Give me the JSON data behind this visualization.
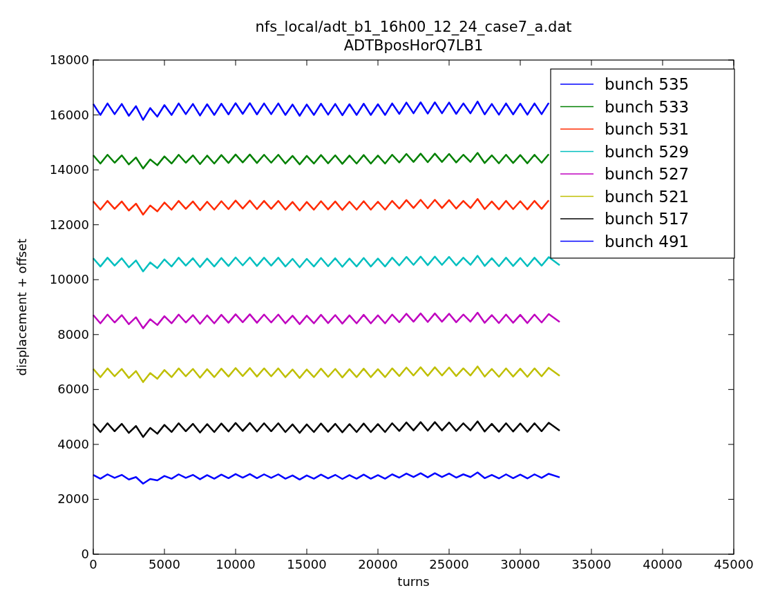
{
  "chart_data": {
    "type": "line",
    "title": "nfs_local/adt_b1_16h00_12_24_case7_a.dat",
    "subtitle": "ADTBposHorQ7LB1",
    "xlabel": "turns",
    "ylabel": "displacement + offset",
    "x": [
      0,
      500,
      1000,
      1500,
      2000,
      2500,
      3000,
      3500,
      4000,
      4500,
      5000,
      5500,
      6000,
      6500,
      7000,
      7500,
      8000,
      8500,
      9000,
      9500,
      10000,
      10500,
      11000,
      11500,
      12000,
      12500,
      13000,
      13500,
      14000,
      14500,
      15000,
      15500,
      16000,
      16500,
      17000,
      17500,
      18000,
      18500,
      19000,
      19500,
      20000,
      20500,
      21000,
      21500,
      22000,
      22500,
      23000,
      23500,
      24000,
      24500,
      25000,
      25500,
      26000,
      26500,
      27000,
      27500,
      28000,
      28500,
      29000,
      29500,
      30000,
      30500,
      31000,
      31500,
      32000,
      32768
    ],
    "xlim": [
      0,
      45000
    ],
    "xticks": [
      0,
      5000,
      10000,
      15000,
      20000,
      25000,
      30000,
      35000,
      40000,
      45000
    ],
    "ylim": [
      0,
      18000
    ],
    "yticks": [
      0,
      2000,
      4000,
      6000,
      8000,
      10000,
      12000,
      14000,
      16000,
      18000
    ],
    "legend": "top right",
    "marker": "none",
    "line_style": "solid",
    "grid": false,
    "series": [
      {
        "name": "bunch 535",
        "color": "#0000ff",
        "values": [
          16400,
          16000,
          16420,
          16030,
          16400,
          15970,
          16320,
          15820,
          16250,
          15940,
          16360,
          16000,
          16420,
          16030,
          16400,
          15980,
          16390,
          16000,
          16410,
          16020,
          16430,
          16040,
          16430,
          16020,
          16420,
          16030,
          16420,
          16000,
          16380,
          15970,
          16380,
          16000,
          16410,
          16010,
          16400,
          15990,
          16390,
          16000,
          16410,
          16000,
          16390,
          16000,
          16420,
          16040,
          16450,
          16060,
          16460,
          16050,
          16460,
          16060,
          16450,
          16040,
          16420,
          16060,
          16490,
          16020,
          16400,
          16010,
          16420,
          16020,
          16410,
          16010,
          16420,
          16030,
          16440,
          null
        ]
      },
      {
        "name": "bunch 533",
        "color": "#008000",
        "values": [
          14530,
          14230,
          14550,
          14260,
          14530,
          14200,
          14450,
          14050,
          14380,
          14170,
          14490,
          14230,
          14550,
          14260,
          14530,
          14210,
          14520,
          14230,
          14540,
          14250,
          14560,
          14270,
          14560,
          14250,
          14550,
          14260,
          14550,
          14230,
          14510,
          14200,
          14510,
          14230,
          14540,
          14240,
          14530,
          14220,
          14520,
          14230,
          14540,
          14230,
          14520,
          14230,
          14550,
          14270,
          14580,
          14290,
          14590,
          14280,
          14590,
          14290,
          14580,
          14270,
          14550,
          14290,
          14620,
          14250,
          14530,
          14240,
          14550,
          14250,
          14540,
          14240,
          14550,
          14260,
          14570,
          null
        ]
      },
      {
        "name": "bunch 531",
        "color": "#ff2a00",
        "values": [
          12850,
          12550,
          12870,
          12580,
          12850,
          12520,
          12770,
          12370,
          12700,
          12490,
          12810,
          12550,
          12870,
          12580,
          12850,
          12530,
          12840,
          12550,
          12860,
          12570,
          12880,
          12590,
          12880,
          12570,
          12870,
          12580,
          12870,
          12550,
          12830,
          12520,
          12830,
          12550,
          12860,
          12560,
          12850,
          12540,
          12840,
          12550,
          12860,
          12550,
          12840,
          12550,
          12870,
          12590,
          12900,
          12610,
          12910,
          12600,
          12910,
          12610,
          12900,
          12590,
          12870,
          12610,
          12940,
          12570,
          12850,
          12560,
          12870,
          12570,
          12860,
          12560,
          12870,
          12580,
          12890,
          null
        ]
      },
      {
        "name": "bunch 529",
        "color": "#00bfbf",
        "values": [
          10780,
          10480,
          10800,
          10510,
          10780,
          10450,
          10700,
          10300,
          10630,
          10420,
          10740,
          10480,
          10800,
          10510,
          10780,
          10460,
          10770,
          10480,
          10790,
          10500,
          10810,
          10520,
          10810,
          10500,
          10800,
          10510,
          10800,
          10480,
          10760,
          10450,
          10760,
          10480,
          10790,
          10490,
          10780,
          10470,
          10770,
          10480,
          10790,
          10480,
          10770,
          10480,
          10800,
          10520,
          10830,
          10540,
          10840,
          10530,
          10840,
          10540,
          10830,
          10520,
          10800,
          10540,
          10870,
          10500,
          10780,
          10490,
          10800,
          10500,
          10790,
          10490,
          10800,
          10510,
          10820,
          10530
        ]
      },
      {
        "name": "bunch 527",
        "color": "#bf00bf",
        "values": [
          8710,
          8410,
          8730,
          8440,
          8710,
          8380,
          8630,
          8230,
          8560,
          8350,
          8670,
          8410,
          8730,
          8440,
          8710,
          8390,
          8700,
          8410,
          8720,
          8430,
          8740,
          8450,
          8740,
          8430,
          8730,
          8440,
          8730,
          8410,
          8690,
          8380,
          8690,
          8410,
          8720,
          8420,
          8710,
          8400,
          8700,
          8410,
          8720,
          8410,
          8700,
          8410,
          8730,
          8450,
          8760,
          8470,
          8770,
          8460,
          8770,
          8470,
          8760,
          8450,
          8730,
          8470,
          8800,
          8430,
          8710,
          8420,
          8730,
          8430,
          8720,
          8420,
          8730,
          8440,
          8750,
          8460
        ]
      },
      {
        "name": "bunch 521",
        "color": "#bfbf00",
        "values": [
          6750,
          6450,
          6770,
          6480,
          6750,
          6420,
          6670,
          6270,
          6600,
          6390,
          6710,
          6450,
          6770,
          6480,
          6750,
          6430,
          6740,
          6450,
          6760,
          6470,
          6780,
          6490,
          6780,
          6470,
          6770,
          6480,
          6770,
          6450,
          6730,
          6420,
          6730,
          6450,
          6760,
          6460,
          6750,
          6440,
          6740,
          6450,
          6760,
          6450,
          6740,
          6450,
          6770,
          6490,
          6800,
          6510,
          6810,
          6500,
          6810,
          6510,
          6800,
          6490,
          6770,
          6510,
          6840,
          6470,
          6750,
          6460,
          6770,
          6470,
          6760,
          6460,
          6770,
          6480,
          6790,
          6500
        ]
      },
      {
        "name": "bunch 517",
        "color": "#000000",
        "values": [
          4750,
          4450,
          4770,
          4480,
          4750,
          4420,
          4670,
          4270,
          4600,
          4390,
          4710,
          4450,
          4770,
          4480,
          4750,
          4430,
          4740,
          4450,
          4760,
          4470,
          4780,
          4490,
          4780,
          4470,
          4770,
          4480,
          4770,
          4450,
          4730,
          4420,
          4730,
          4450,
          4760,
          4460,
          4750,
          4440,
          4740,
          4450,
          4760,
          4450,
          4740,
          4450,
          4770,
          4490,
          4800,
          4510,
          4810,
          4500,
          4810,
          4510,
          4800,
          4490,
          4770,
          4510,
          4840,
          4470,
          4750,
          4460,
          4770,
          4470,
          4760,
          4460,
          4770,
          4480,
          4790,
          4500
        ]
      },
      {
        "name": "bunch 491",
        "color": "#0000ff",
        "values": [
          2890,
          2750,
          2910,
          2780,
          2890,
          2720,
          2810,
          2570,
          2740,
          2690,
          2850,
          2750,
          2910,
          2780,
          2890,
          2730,
          2880,
          2750,
          2900,
          2770,
          2920,
          2790,
          2920,
          2770,
          2910,
          2780,
          2910,
          2750,
          2870,
          2720,
          2870,
          2750,
          2900,
          2760,
          2890,
          2740,
          2880,
          2750,
          2900,
          2750,
          2880,
          2750,
          2910,
          2790,
          2940,
          2810,
          2950,
          2800,
          2950,
          2810,
          2940,
          2790,
          2910,
          2810,
          2980,
          2770,
          2890,
          2760,
          2910,
          2770,
          2900,
          2760,
          2910,
          2780,
          2930,
          2800
        ]
      }
    ]
  }
}
